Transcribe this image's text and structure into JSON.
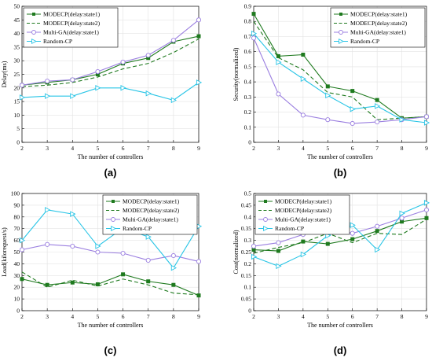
{
  "chart_data": [
    {
      "panel": "(a)",
      "type": "line",
      "xlabel": "The number of controllers",
      "ylabel": "Delay(ms)",
      "x": [
        2,
        3,
        4,
        5,
        6,
        7,
        8,
        9
      ],
      "xlim": [
        2,
        9
      ],
      "ylim": [
        0,
        50
      ],
      "yticks": [
        0,
        5,
        10,
        15,
        20,
        25,
        30,
        35,
        40,
        45,
        50
      ],
      "grid": true,
      "legend_position": "top-left",
      "series": [
        {
          "name": "MODECP(delay:state1)",
          "style": "solid",
          "marker": "square",
          "color": "#1f7a1f",
          "values": [
            21,
            22,
            23,
            25,
            29,
            31,
            37,
            39
          ]
        },
        {
          "name": "MODECP(delay:state2)",
          "style": "dashed",
          "marker": "none",
          "color": "#1f7a1f",
          "values": [
            20.5,
            21,
            22,
            24,
            27,
            29,
            33,
            38
          ]
        },
        {
          "name": "Multi-GA(delay:state1)",
          "style": "solid",
          "marker": "circle",
          "color": "#9b7fe0",
          "values": [
            21,
            22.5,
            23,
            26,
            29.5,
            32,
            37.5,
            45
          ]
        },
        {
          "name": "Random-CP",
          "style": "solid",
          "marker": "triangle",
          "color": "#29c5e6",
          "values": [
            16.5,
            17,
            17,
            20,
            20,
            18,
            15.5,
            22
          ]
        }
      ]
    },
    {
      "panel": "(b)",
      "type": "line",
      "xlabel": "The number of controllers",
      "ylabel": "Security(normalized)",
      "x": [
        2,
        3,
        4,
        5,
        6,
        7,
        8,
        9
      ],
      "xlim": [
        2,
        9
      ],
      "ylim": [
        0,
        0.9
      ],
      "yticks": [
        0,
        0.1,
        0.2,
        0.3,
        0.4,
        0.5,
        0.6,
        0.7,
        0.8,
        0.9
      ],
      "grid": true,
      "legend_position": "top-right",
      "series": [
        {
          "name": "MODECP(delay:state1)",
          "style": "solid",
          "marker": "square",
          "color": "#1f7a1f",
          "values": [
            0.85,
            0.57,
            0.58,
            0.37,
            0.34,
            0.28,
            0.16,
            0.17
          ]
        },
        {
          "name": "MODECP(delay:state2)",
          "style": "dashed",
          "marker": "none",
          "color": "#1f7a1f",
          "values": [
            0.8,
            0.56,
            0.48,
            0.33,
            0.3,
            0.15,
            0.16,
            0.17
          ]
        },
        {
          "name": "Multi-GA(delay:state1)",
          "style": "solid",
          "marker": "circle",
          "color": "#9b7fe0",
          "values": [
            0.69,
            0.32,
            0.18,
            0.15,
            0.125,
            0.135,
            0.15,
            0.17
          ]
        },
        {
          "name": "Random-CP",
          "style": "solid",
          "marker": "triangle",
          "color": "#29c5e6",
          "values": [
            0.72,
            0.53,
            0.42,
            0.31,
            0.22,
            0.24,
            0.15,
            0.13
          ]
        }
      ]
    },
    {
      "panel": "(c)",
      "type": "line",
      "xlabel": "The number of controllers",
      "ylabel": "Load(kilorequest/s)",
      "x": [
        2,
        3,
        4,
        5,
        6,
        7,
        8,
        9
      ],
      "xlim": [
        2,
        9
      ],
      "ylim": [
        0,
        100
      ],
      "yticks": [
        0,
        10,
        20,
        30,
        40,
        50,
        60,
        70,
        80,
        90,
        100
      ],
      "grid": true,
      "legend_position": "top-right",
      "series": [
        {
          "name": "MODECP(delay:state1)",
          "style": "solid",
          "marker": "square",
          "color": "#1f7a1f",
          "values": [
            27,
            22,
            24,
            22.5,
            31,
            25,
            22,
            13
          ]
        },
        {
          "name": "MODECP(delay:state2)",
          "style": "dashed",
          "marker": "none",
          "color": "#1f7a1f",
          "values": [
            33,
            20,
            26,
            21,
            27,
            22,
            15,
            13.5
          ]
        },
        {
          "name": "Multi-GA(delay:state1)",
          "style": "solid",
          "marker": "circle",
          "color": "#9b7fe0",
          "values": [
            52,
            56.5,
            55,
            50,
            49,
            43,
            47,
            42
          ]
        },
        {
          "name": "Random-CP",
          "style": "solid",
          "marker": "triangle",
          "color": "#29c5e6",
          "values": [
            60,
            86,
            82.5,
            55,
            70.5,
            63,
            36.5,
            72
          ]
        }
      ]
    },
    {
      "panel": "(d)",
      "type": "line",
      "xlabel": "The number of controllers",
      "ylabel": "Cost(normalized)",
      "x": [
        2,
        3,
        4,
        5,
        6,
        7,
        8,
        9
      ],
      "xlim": [
        2,
        9
      ],
      "ylim": [
        0,
        0.5
      ],
      "yticks": [
        0,
        0.05,
        0.1,
        0.15,
        0.2,
        0.25,
        0.3,
        0.35,
        0.4,
        0.45,
        0.5
      ],
      "grid": true,
      "legend_position": "top-left",
      "series": [
        {
          "name": "MODECP(delay:state1)",
          "style": "solid",
          "marker": "square",
          "color": "#1f7a1f",
          "values": [
            0.26,
            0.255,
            0.295,
            0.285,
            0.305,
            0.34,
            0.38,
            0.395
          ]
        },
        {
          "name": "MODECP(delay:state2)",
          "style": "dashed",
          "marker": "none",
          "color": "#1f7a1f",
          "values": [
            0.245,
            0.27,
            0.29,
            0.33,
            0.29,
            0.33,
            0.325,
            0.39
          ]
        },
        {
          "name": "Multi-GA(delay:state1)",
          "style": "solid",
          "marker": "circle",
          "color": "#9b7fe0",
          "values": [
            0.275,
            0.29,
            0.325,
            0.36,
            0.33,
            0.36,
            0.395,
            0.43
          ]
        },
        {
          "name": "Random-CP",
          "style": "solid",
          "marker": "triangle",
          "color": "#29c5e6",
          "values": [
            0.23,
            0.19,
            0.24,
            0.32,
            0.365,
            0.26,
            0.415,
            0.46
          ]
        }
      ]
    }
  ]
}
